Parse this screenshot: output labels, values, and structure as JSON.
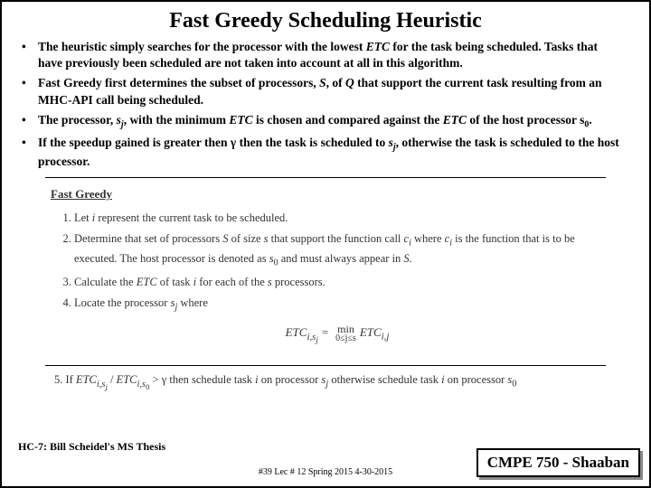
{
  "title": "Fast Greedy Scheduling Heuristic",
  "bullets": {
    "b1a": "The heuristic simply searches for the processor with the lowest ",
    "b1b": "ETC",
    "b1c": " for the task being scheduled.  Tasks that have previously been scheduled are not taken into account at all in this algorithm.",
    "b2a": "Fast Greedy first determines the subset of processors, ",
    "b2b": "S",
    "b2c": ", of ",
    "b2d": "Q",
    "b2e": " that support the current task resulting from an MHC-API call being scheduled.",
    "b3a": "The processor, ",
    "b3b": "s",
    "b3sub": "j",
    "b3c": ", with the minimum ",
    "b3d": "ETC",
    "b3e": " is chosen and compared against the ",
    "b3f": "ETC",
    "b3g": " of the host processor ",
    "b3h": "s",
    "b3hsub": "0",
    "b3i": ".",
    "b4a": "If the speedup gained is greater then γ then the task is scheduled to ",
    "b4b": "s",
    "b4sub": "j",
    "b4c": ", otherwise the task is scheduled to the host processor."
  },
  "algo": {
    "heading": "Fast Greedy",
    "s1a": "Let ",
    "s1b": "i",
    "s1c": " represent the current task to be scheduled.",
    "s2a": "Determine that set of processors ",
    "s2b": "S",
    "s2c": " of size ",
    "s2d": "s",
    "s2e": " that support the function call ",
    "s2f": "c",
    "s2fsub": "i",
    "s2g": " where ",
    "s2h": "c",
    "s2hsub": "i",
    "s2i": " is the function that is to be executed. The host processor is denoted as ",
    "s2j": "s",
    "s2jsub": "0",
    "s2k": " and must always appear in ",
    "s2l": "S",
    "s2m": ".",
    "s3a": "Calculate the ",
    "s3b": "ETC",
    "s3c": " of task ",
    "s3d": "i",
    "s3e": " for each of the ",
    "s3f": "s",
    "s3g": " processors.",
    "s4a": "Locate the processor ",
    "s4b": "s",
    "s4bsub": "j",
    "s4c": " where",
    "formula_lhs": "ETC",
    "formula_sub1": "i,s",
    "formula_sub1b": "j",
    "formula_eq": " = ",
    "formula_min": "min",
    "formula_minsub": "0≤j≤s",
    "formula_rhs": "ETC",
    "formula_rsub": "i,j"
  },
  "step5": {
    "a": "5.  If ",
    "b": "ETC",
    "bsub1": "i,s",
    "bsub1b": "j",
    "c": " / ",
    "d": "ETC",
    "dsub": "i,s",
    "dsub0": "0",
    "e": " > γ then schedule task ",
    "f": "i",
    "g": " on processor ",
    "h": "s",
    "hsub": "j",
    "i": " otherwise schedule task ",
    "j": "i",
    "k": " on processor ",
    "l": "s",
    "lsub": "0"
  },
  "footer": {
    "left": "HC-7: Bill Scheidel's MS Thesis",
    "center": "#39  Lec # 12  Spring 2015  4-30-2015",
    "course": "CMPE 750 - Shaaban"
  }
}
